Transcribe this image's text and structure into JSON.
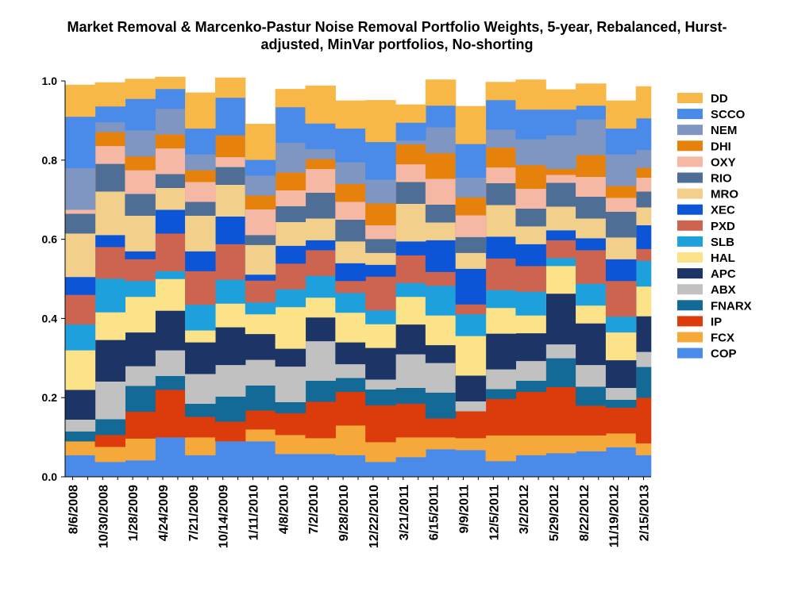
{
  "chart_data": {
    "type": "area",
    "stacking": "stacked-step",
    "title_line1": "Market Removal & Marcenko-Pastur Noise Removal Portfolio Weights, 5-year, Rebalanced, Hurst-",
    "title_line2": "adjusted, MinVar portfolios, No-shorting",
    "xlabel": "",
    "ylabel": "",
    "ylim": [
      0,
      1
    ],
    "yticks": [
      0.0,
      0.2,
      0.4,
      0.6,
      0.8,
      1.0
    ],
    "ytick_labels": [
      "0.0",
      "0.2",
      "0.4",
      "0.6",
      "0.8",
      "1.0"
    ],
    "x_labels": [
      "8/6/2008",
      "10/30/2008",
      "1/28/2009",
      "4/24/2009",
      "7/21/2009",
      "10/14/2009",
      "1/11/2010",
      "4/8/2010",
      "7/2/2010",
      "9/28/2010",
      "12/22/2010",
      "3/21/2011",
      "6/15/2011",
      "9/9/2011",
      "12/5/2011",
      "3/2/2012",
      "5/29/2012",
      "8/22/2012",
      "11/19/2012",
      "2/15/2013"
    ],
    "label_every": 2,
    "periods": 39,
    "legend_position": "right",
    "series": [
      {
        "name": "COP",
        "color": "#4a8ae8",
        "values": [
          0.055,
          0.055,
          0.038,
          0.038,
          0.042,
          0.042,
          0.1,
          0.1,
          0.055,
          0.055,
          0.09,
          0.09,
          0.09,
          0.09,
          0.058,
          0.058,
          0.058,
          0.058,
          0.055,
          0.055,
          0.038,
          0.038,
          0.05,
          0.05,
          0.07,
          0.07,
          0.068,
          0.068,
          0.04,
          0.04,
          0.055,
          0.055,
          0.06,
          0.06,
          0.065,
          0.065,
          0.075,
          0.075,
          0.055
        ]
      },
      {
        "name": "FCX",
        "color": "#f5a93b",
        "values": [
          0.035,
          0.035,
          0.038,
          0.038,
          0.055,
          0.055,
          0.0,
          0.0,
          0.045,
          0.045,
          0.0,
          0.0,
          0.03,
          0.03,
          0.048,
          0.048,
          0.04,
          0.04,
          0.075,
          0.075,
          0.05,
          0.05,
          0.05,
          0.05,
          0.03,
          0.03,
          0.03,
          0.03,
          0.065,
          0.065,
          0.05,
          0.05,
          0.045,
          0.045,
          0.04,
          0.04,
          0.035,
          0.035,
          0.03
        ]
      },
      {
        "name": "IP",
        "color": "#dc3c0c",
        "values": [
          0.0,
          0.0,
          0.03,
          0.03,
          0.068,
          0.068,
          0.12,
          0.12,
          0.052,
          0.052,
          0.05,
          0.05,
          0.048,
          0.048,
          0.055,
          0.055,
          0.092,
          0.092,
          0.085,
          0.085,
          0.093,
          0.093,
          0.085,
          0.085,
          0.048,
          0.048,
          0.068,
          0.068,
          0.092,
          0.092,
          0.11,
          0.11,
          0.122,
          0.122,
          0.075,
          0.075,
          0.065,
          0.065,
          0.115
        ]
      },
      {
        "name": "FNARX",
        "color": "#146a96",
        "values": [
          0.025,
          0.025,
          0.04,
          0.04,
          0.065,
          0.065,
          0.035,
          0.035,
          0.033,
          0.033,
          0.063,
          0.063,
          0.063,
          0.063,
          0.028,
          0.028,
          0.053,
          0.053,
          0.035,
          0.035,
          0.04,
          0.04,
          0.04,
          0.04,
          0.065,
          0.065,
          0.0,
          0.0,
          0.025,
          0.025,
          0.028,
          0.028,
          0.073,
          0.073,
          0.048,
          0.048,
          0.02,
          0.02,
          0.078
        ]
      },
      {
        "name": "ABX",
        "color": "#c1c1c1",
        "values": [
          0.03,
          0.03,
          0.095,
          0.095,
          0.05,
          0.05,
          0.065,
          0.065,
          0.075,
          0.075,
          0.08,
          0.08,
          0.065,
          0.065,
          0.09,
          0.09,
          0.1,
          0.1,
          0.035,
          0.035,
          0.025,
          0.025,
          0.085,
          0.085,
          0.075,
          0.075,
          0.025,
          0.025,
          0.05,
          0.05,
          0.05,
          0.05,
          0.035,
          0.035,
          0.055,
          0.055,
          0.03,
          0.03,
          0.038
        ]
      },
      {
        "name": "APC",
        "color": "#1c3566",
        "values": [
          0.075,
          0.075,
          0.105,
          0.105,
          0.085,
          0.085,
          0.1,
          0.1,
          0.08,
          0.08,
          0.095,
          0.095,
          0.065,
          0.065,
          0.045,
          0.045,
          0.06,
          0.06,
          0.055,
          0.055,
          0.08,
          0.08,
          0.075,
          0.075,
          0.045,
          0.045,
          0.065,
          0.065,
          0.09,
          0.09,
          0.07,
          0.07,
          0.128,
          0.128,
          0.105,
          0.105,
          0.07,
          0.07,
          0.09
        ]
      },
      {
        "name": "HAL",
        "color": "#fce38a",
        "values": [
          0.1,
          0.1,
          0.07,
          0.07,
          0.09,
          0.09,
          0.08,
          0.08,
          0.03,
          0.03,
          0.06,
          0.06,
          0.05,
          0.05,
          0.105,
          0.105,
          0.05,
          0.05,
          0.075,
          0.075,
          0.06,
          0.06,
          0.07,
          0.07,
          0.075,
          0.075,
          0.1,
          0.1,
          0.065,
          0.065,
          0.045,
          0.045,
          0.07,
          0.07,
          0.045,
          0.045,
          0.07,
          0.07,
          0.075
        ]
      },
      {
        "name": "SLB",
        "color": "#1ea0dc",
        "values": [
          0.065,
          0.065,
          0.085,
          0.085,
          0.04,
          0.04,
          0.02,
          0.02,
          0.065,
          0.065,
          0.06,
          0.06,
          0.03,
          0.03,
          0.045,
          0.045,
          0.055,
          0.055,
          0.05,
          0.05,
          0.035,
          0.035,
          0.035,
          0.035,
          0.075,
          0.075,
          0.055,
          0.055,
          0.045,
          0.045,
          0.06,
          0.06,
          0.02,
          0.02,
          0.055,
          0.055,
          0.04,
          0.04,
          0.065
        ]
      },
      {
        "name": "PXD",
        "color": "#cd6450",
        "values": [
          0.075,
          0.075,
          0.08,
          0.08,
          0.055,
          0.055,
          0.095,
          0.095,
          0.085,
          0.085,
          0.09,
          0.09,
          0.055,
          0.055,
          0.065,
          0.065,
          0.065,
          0.065,
          0.03,
          0.03,
          0.085,
          0.085,
          0.07,
          0.07,
          0.035,
          0.035,
          0.025,
          0.025,
          0.08,
          0.08,
          0.065,
          0.065,
          0.045,
          0.045,
          0.085,
          0.085,
          0.09,
          0.09,
          0.03
        ]
      },
      {
        "name": "XEC",
        "color": "#0b55d6",
        "values": [
          0.045,
          0.045,
          0.03,
          0.03,
          0.02,
          0.02,
          0.06,
          0.06,
          0.05,
          0.05,
          0.07,
          0.07,
          0.015,
          0.015,
          0.045,
          0.045,
          0.025,
          0.025,
          0.045,
          0.045,
          0.03,
          0.03,
          0.035,
          0.035,
          0.08,
          0.08,
          0.09,
          0.09,
          0.055,
          0.055,
          0.055,
          0.055,
          0.025,
          0.025,
          0.03,
          0.03,
          0.055,
          0.055,
          0.06
        ]
      },
      {
        "name": "MRO",
        "color": "#f3cf8c",
        "values": [
          0.11,
          0.11,
          0.11,
          0.11,
          0.09,
          0.09,
          0.055,
          0.055,
          0.09,
          0.09,
          0.08,
          0.08,
          0.075,
          0.075,
          0.06,
          0.06,
          0.055,
          0.055,
          0.055,
          0.055,
          0.03,
          0.03,
          0.095,
          0.095,
          0.045,
          0.045,
          0.04,
          0.04,
          0.08,
          0.08,
          0.045,
          0.045,
          0.06,
          0.06,
          0.05,
          0.05,
          0.055,
          0.055,
          0.045
        ]
      },
      {
        "name": "RIO",
        "color": "#4f6e96",
        "values": [
          0.05,
          0.05,
          0.07,
          0.07,
          0.055,
          0.055,
          0.035,
          0.035,
          0.035,
          0.035,
          0.045,
          0.045,
          0.025,
          0.025,
          0.04,
          0.04,
          0.065,
          0.065,
          0.055,
          0.055,
          0.035,
          0.035,
          0.055,
          0.055,
          0.045,
          0.045,
          0.04,
          0.04,
          0.055,
          0.055,
          0.045,
          0.045,
          0.06,
          0.06,
          0.055,
          0.055,
          0.065,
          0.065,
          0.04
        ]
      },
      {
        "name": "OXY",
        "color": "#f4b8a4",
        "values": [
          0.01,
          0.01,
          0.045,
          0.045,
          0.06,
          0.06,
          0.065,
          0.065,
          0.05,
          0.05,
          0.025,
          0.025,
          0.065,
          0.065,
          0.04,
          0.04,
          0.06,
          0.06,
          0.045,
          0.045,
          0.035,
          0.035,
          0.045,
          0.045,
          0.065,
          0.065,
          0.055,
          0.055,
          0.04,
          0.04,
          0.05,
          0.05,
          0.02,
          0.02,
          0.05,
          0.05,
          0.035,
          0.035,
          0.035
        ]
      },
      {
        "name": "DHI",
        "color": "#e6820c",
        "values": [
          0.0,
          0.0,
          0.035,
          0.035,
          0.035,
          0.035,
          0.035,
          0.035,
          0.03,
          0.03,
          0.055,
          0.055,
          0.035,
          0.035,
          0.045,
          0.045,
          0.025,
          0.025,
          0.045,
          0.045,
          0.055,
          0.055,
          0.05,
          0.05,
          0.065,
          0.065,
          0.045,
          0.045,
          0.05,
          0.05,
          0.06,
          0.06,
          0.015,
          0.015,
          0.055,
          0.055,
          0.03,
          0.03,
          0.025
        ]
      },
      {
        "name": "NEM",
        "color": "#7f96c3",
        "values": [
          0.105,
          0.105,
          0.025,
          0.025,
          0.065,
          0.065,
          0.065,
          0.065,
          0.04,
          0.04,
          0.0,
          0.0,
          0.05,
          0.05,
          0.075,
          0.075,
          0.025,
          0.025,
          0.055,
          0.055,
          0.06,
          0.06,
          0.01,
          0.01,
          0.065,
          0.065,
          0.05,
          0.05,
          0.045,
          0.045,
          0.065,
          0.065,
          0.085,
          0.085,
          0.09,
          0.09,
          0.08,
          0.08,
          0.045
        ]
      },
      {
        "name": "SCCO",
        "color": "#4a8ae8",
        "values": [
          0.13,
          0.13,
          0.04,
          0.04,
          0.08,
          0.08,
          0.05,
          0.05,
          0.065,
          0.065,
          0.095,
          0.095,
          0.04,
          0.04,
          0.09,
          0.09,
          0.065,
          0.065,
          0.085,
          0.085,
          0.095,
          0.095,
          0.045,
          0.045,
          0.055,
          0.055,
          0.085,
          0.085,
          0.075,
          0.075,
          0.075,
          0.075,
          0.065,
          0.065,
          0.035,
          0.035,
          0.065,
          0.065,
          0.08
        ]
      },
      {
        "name": "DD",
        "color": "#f8b848",
        "values": [
          0.08,
          0.08,
          0.06,
          0.06,
          0.05,
          0.05,
          0.03,
          0.03,
          0.09,
          0.09,
          0.05,
          0.05,
          0.09,
          0.09,
          0.045,
          0.045,
          0.095,
          0.095,
          0.07,
          0.07,
          0.105,
          0.105,
          0.045,
          0.045,
          0.065,
          0.065,
          0.095,
          0.095,
          0.045,
          0.045,
          0.075,
          0.075,
          0.05,
          0.05,
          0.055,
          0.055,
          0.07,
          0.07,
          0.08
        ]
      }
    ]
  }
}
